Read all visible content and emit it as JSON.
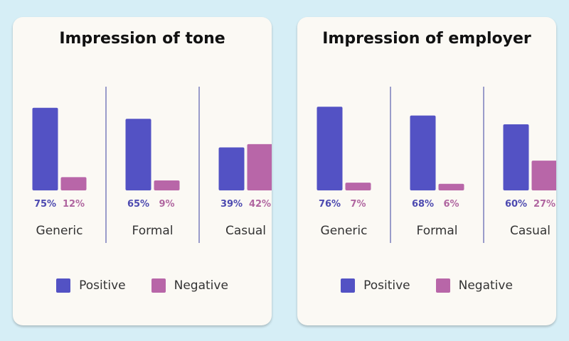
{
  "colors": {
    "positive": "#5352c4",
    "negative": "#b866a8",
    "divider": "#3a3fa0",
    "pct_positive": "#4d4ab0",
    "pct_negative": "#b066a0"
  },
  "chart_data": [
    {
      "type": "bar",
      "title": "Impression of tone",
      "categories": [
        "Generic",
        "Formal",
        "Casual"
      ],
      "series": [
        {
          "name": "Positive",
          "values": [
            75,
            65,
            39
          ]
        },
        {
          "name": "Negative",
          "values": [
            12,
            9,
            42
          ]
        }
      ],
      "value_labels": {
        "Positive": [
          "75%",
          "65%",
          "39%"
        ],
        "Negative": [
          "12%",
          "9%",
          "42%"
        ]
      },
      "ylim": [
        0,
        100
      ],
      "legend": "bottom"
    },
    {
      "type": "bar",
      "title": "Impression of employer",
      "categories": [
        "Generic",
        "Formal",
        "Casual"
      ],
      "series": [
        {
          "name": "Positive",
          "values": [
            76,
            68,
            60
          ]
        },
        {
          "name": "Negative",
          "values": [
            7,
            6,
            27
          ]
        }
      ],
      "value_labels": {
        "Positive": [
          "76%",
          "68%",
          "60%"
        ],
        "Negative": [
          "7%",
          "6%",
          "27%"
        ]
      },
      "ylim": [
        0,
        100
      ],
      "legend": "bottom"
    }
  ]
}
